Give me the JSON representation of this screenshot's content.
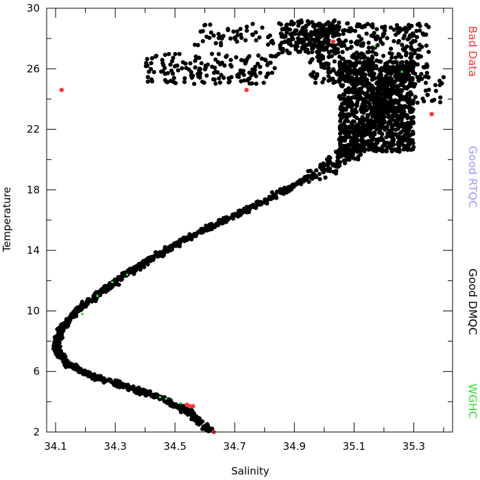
{
  "chart_data": {
    "type": "scatter",
    "title": "",
    "xlabel": "Salinity",
    "ylabel": "Temperature",
    "xlim": [
      34.07,
      35.43
    ],
    "ylim": [
      2,
      30
    ],
    "x_ticks_major": [
      34.1,
      34.3,
      34.5,
      34.7,
      34.9,
      35.1,
      35.3
    ],
    "x_ticks_minor": [
      34.2,
      34.4,
      34.6,
      34.8,
      35.0,
      35.2,
      35.4
    ],
    "y_ticks_major": [
      2,
      6,
      10,
      14,
      18,
      22,
      26,
      30
    ],
    "y_ticks_minor": [
      4,
      8,
      12,
      16,
      20,
      24,
      28
    ],
    "grid": false,
    "legend": {
      "placement": "right",
      "orientation": "vertical",
      "entries": [
        {
          "label": "Bad Data",
          "color": "#ff3333"
        },
        {
          "label": "Good RTQC",
          "color": "#9999ff"
        },
        {
          "label": "Good DMQC",
          "color": "#000000"
        },
        {
          "label": "WGHC",
          "color": "#33dd33"
        }
      ]
    },
    "curve_profile": {
      "description_units": "temperature (degC) vs salinity (PSU) center line of the main point cloud",
      "points": [
        [
          34.62,
          2.0
        ],
        [
          34.55,
          3.3
        ],
        [
          34.45,
          4.3
        ],
        [
          34.33,
          5.0
        ],
        [
          34.22,
          5.7
        ],
        [
          34.14,
          6.5
        ],
        [
          34.1,
          7.5
        ],
        [
          34.12,
          8.8
        ],
        [
          34.17,
          10.0
        ],
        [
          34.25,
          11.2
        ],
        [
          34.35,
          12.6
        ],
        [
          34.46,
          13.9
        ],
        [
          34.58,
          15.2
        ],
        [
          34.72,
          16.5
        ],
        [
          34.87,
          18.0
        ],
        [
          35.0,
          19.3
        ],
        [
          35.09,
          20.6
        ],
        [
          35.16,
          22.0
        ],
        [
          35.2,
          23.5
        ],
        [
          35.22,
          25.0
        ]
      ]
    },
    "series": [
      {
        "name": "Good DMQC",
        "color": "#000000",
        "clusters": [
          {
            "x": [
              35.05,
              35.3
            ],
            "y": [
              20.5,
              26.5
            ],
            "count": 900
          },
          {
            "x": [
              34.95,
              35.35
            ],
            "y": [
              25.0,
              29.0
            ],
            "count": 420
          },
          {
            "x": [
              34.85,
              35.05
            ],
            "y": [
              27.0,
              29.2
            ],
            "count": 180
          },
          {
            "x": [
              34.4,
              34.85
            ],
            "y": [
              25.0,
              27.0
            ],
            "count": 160
          },
          {
            "x": [
              34.55,
              34.95
            ],
            "y": [
              27.5,
              29.0
            ],
            "count": 60
          },
          {
            "x": [
              35.3,
              35.4
            ],
            "y": [
              23.5,
              25.5
            ],
            "count": 25
          }
        ]
      },
      {
        "name": "Bad Data",
        "color": "#ff3333",
        "points": [
          [
            34.12,
            24.6
          ],
          [
            34.74,
            24.6
          ],
          [
            35.36,
            23.0
          ],
          [
            35.03,
            27.8
          ],
          [
            34.55,
            3.7
          ],
          [
            34.56,
            3.7
          ],
          [
            34.54,
            3.8
          ],
          [
            34.63,
            2.0
          ]
        ]
      },
      {
        "name": "WGHC",
        "color": "#33dd33",
        "points": [
          [
            34.45,
            4.3
          ],
          [
            34.47,
            4.2
          ],
          [
            34.52,
            3.9
          ],
          [
            34.29,
            11.9
          ],
          [
            34.34,
            12.4
          ],
          [
            34.24,
            11.0
          ],
          [
            35.17,
            27.5
          ],
          [
            35.26,
            25.8
          ],
          [
            34.19,
            9.8
          ]
        ]
      }
    ]
  }
}
